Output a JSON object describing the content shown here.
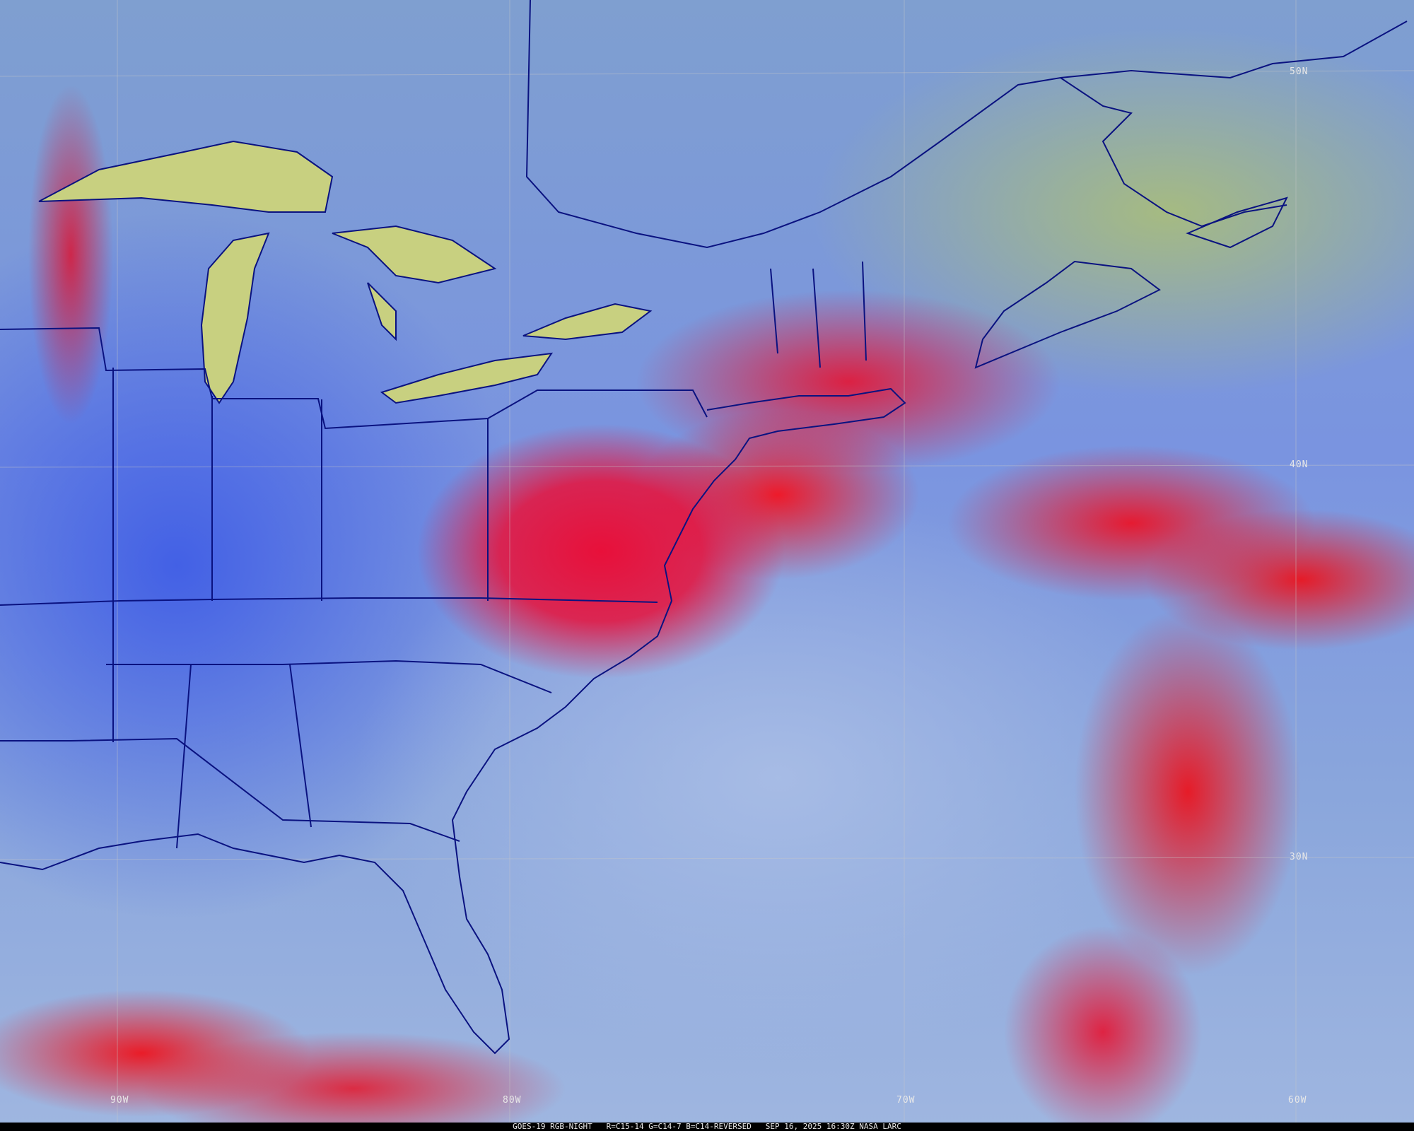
{
  "map": {
    "caption": "GOES-19 RGB-NIGHT   R=C15-14 G=C14-7 B=C14-REVERSED   SEP 16, 2025 16:30Z NASA LARC",
    "lat_labels": [
      "50N",
      "40N",
      "30N"
    ],
    "lon_labels": [
      "90W",
      "80W",
      "70W",
      "60W"
    ],
    "colors": {
      "border": "#0a1280",
      "grid": "#c8c8c8",
      "lakes": "#c8d080",
      "cloud_high": "#e81030",
      "ocean_low_cloud": "#a8bce0"
    }
  }
}
